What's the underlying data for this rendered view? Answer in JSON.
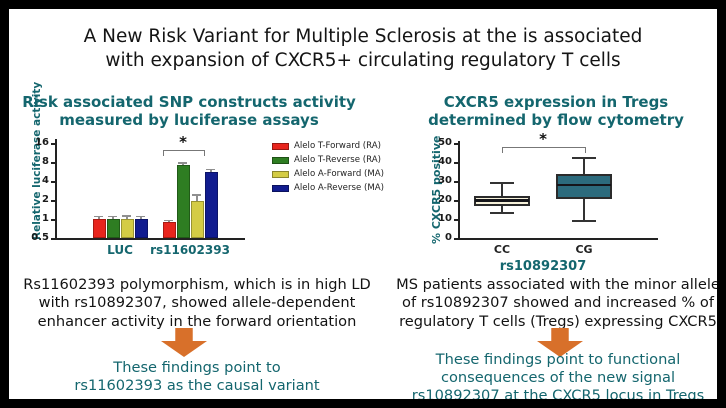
{
  "title": {
    "lines": [
      "A New Risk Variant for Multiple Sclerosis at the is associated",
      "with expansion of CXCR5+ circulating regulatory T cells"
    ]
  },
  "colors": {
    "accent_teal": "#14666e",
    "arrow_orange": "#d8702a",
    "bar_red": "#e8251d",
    "bar_green": "#2e7d22",
    "bar_yellow": "#d4cc45",
    "bar_navy": "#111c8f",
    "box_cc_fill": "#f6f1da",
    "box_cg_fill": "#2c6b7d",
    "axis_dark": "#222222",
    "error_gray": "#8f8f8f",
    "bracket_gray": "#777777"
  },
  "left_panel": {
    "heading_lines": [
      "Risk associated SNP constructs activity",
      "measured by luciferase assays"
    ],
    "desc_lines": [
      "Rs11602393 polymorphism, which  is in high LD",
      "with rs10892307, showed allele-dependent",
      "enhancer activity in the forward orientation"
    ],
    "conclusion_lines": [
      "These findings point to",
      "rs11602393 as the causal variant"
    ]
  },
  "right_panel": {
    "heading_lines": [
      "CXCR5 expression in Tregs",
      "determined by flow cytometry"
    ],
    "desc_lines": [
      "MS patients associated with the minor allele",
      "of rs10892307 showed and increased % of",
      "regulatory T cells (Tregs) expressing CXCR5"
    ],
    "conclusion_lines": [
      "These findings point to functional",
      "consequences of the new signal",
      "rs10892307 at the CXCR5 locus in Tregs"
    ]
  },
  "chart_data": [
    {
      "type": "bar",
      "title": "Risk associated SNP constructs activity measured by luciferase assays",
      "ylabel": "Relative luciferase activity",
      "yscale": "log2",
      "ylim": [
        0.5,
        16
      ],
      "yticks": [
        0.5,
        1,
        2,
        4,
        8,
        16
      ],
      "categories": [
        "LUC",
        "rs11602393"
      ],
      "series": [
        {
          "name": "Alelo T-Forward (RA)",
          "color": "#e8251d",
          "values": [
            1.0,
            0.9
          ],
          "errors": [
            0.12,
            0.08
          ]
        },
        {
          "name": "Alelo T-Reverse (RA)",
          "color": "#2e7d22",
          "values": [
            1.0,
            7.2
          ],
          "errors": [
            0.12,
            0.8
          ]
        },
        {
          "name": "Alelo A-Forward (MA)",
          "color": "#d4cc45",
          "values": [
            1.0,
            1.9
          ],
          "errors": [
            0.15,
            0.55
          ]
        },
        {
          "name": "Alelo A-Reverse (MA)",
          "color": "#111c8f",
          "values": [
            1.0,
            5.5
          ],
          "errors": [
            0.12,
            0.7
          ]
        }
      ],
      "legend_position": "right",
      "grid": false,
      "significance": {
        "category": "rs11602393",
        "span_series": [
          0,
          2
        ],
        "label": "*"
      }
    },
    {
      "type": "box",
      "title": "CXCR5 expression in Tregs determined by flow cytometry",
      "ylabel": "% CXCR5 positive",
      "xlabel": "rs10892307",
      "ylim": [
        0,
        50
      ],
      "yticks": [
        0,
        10,
        20,
        30,
        40,
        50
      ],
      "categories": [
        "CC",
        "CG"
      ],
      "boxes": [
        {
          "label": "CC",
          "min": 13,
          "q1": 17,
          "median": 20,
          "q3": 22,
          "max": 29,
          "fill": "#f6f1da"
        },
        {
          "label": "CG",
          "min": 9,
          "q1": 20.5,
          "median": 28,
          "q3": 33.5,
          "max": 42,
          "fill": "#2c6b7d"
        }
      ],
      "grid": false,
      "significance": {
        "span_categories": [
          "CC",
          "CG"
        ],
        "label": "*"
      }
    }
  ]
}
